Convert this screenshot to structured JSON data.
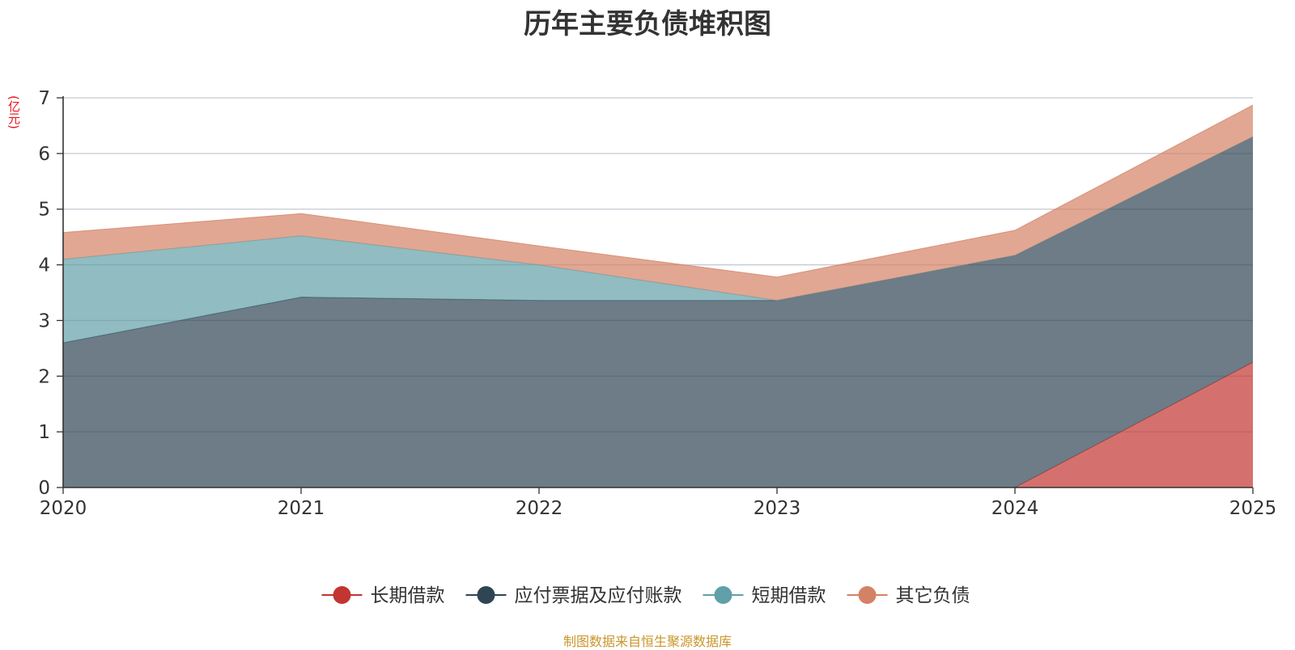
{
  "chart_data": {
    "type": "area",
    "stacked": true,
    "title": "历年主要负债堆积图",
    "unit_label": "(亿元)",
    "x": [
      "2020",
      "2021",
      "2022",
      "2023",
      "2024",
      "2025"
    ],
    "ylim": [
      0,
      7
    ],
    "yticks": [
      0,
      1,
      2,
      3,
      4,
      5,
      6,
      7
    ],
    "grid": true,
    "legend_position": "bottom",
    "series": [
      {
        "name": "长期借款",
        "color": "#c23531",
        "values": [
          0,
          0,
          0,
          0,
          0,
          2.25
        ]
      },
      {
        "name": "应付票据及应付账款",
        "color": "#2f4554",
        "values": [
          2.6,
          3.42,
          3.36,
          3.36,
          4.17,
          4.05
        ]
      },
      {
        "name": "短期借款",
        "color": "#61a0a8",
        "values": [
          1.5,
          1.1,
          0.64,
          0.0,
          0.0,
          0.0
        ]
      },
      {
        "name": "其它负债",
        "color": "#d48265",
        "values": [
          0.48,
          0.4,
          0.34,
          0.42,
          0.45,
          0.57
        ]
      }
    ],
    "source_note": "制图数据来自恒生聚源数据库"
  }
}
